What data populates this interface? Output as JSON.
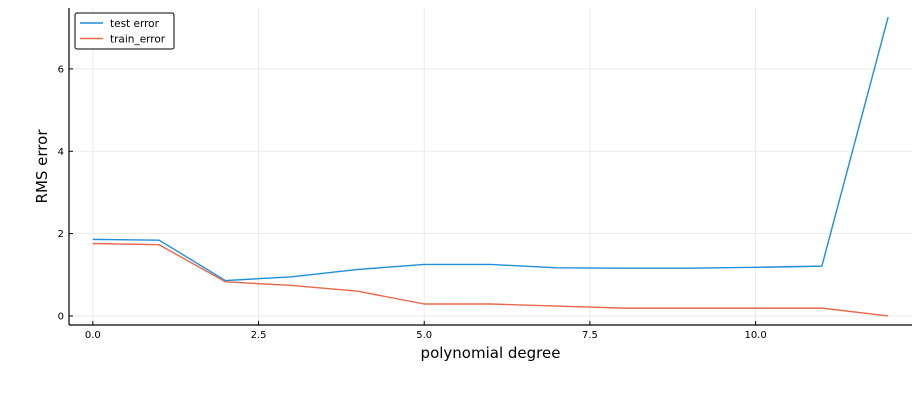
{
  "chart_data": {
    "type": "line",
    "title": "",
    "xlabel": "polynomial degree",
    "ylabel": "RMS error",
    "xlim": [
      -0.36,
      12.36
    ],
    "ylim": [
      -0.22,
      7.48
    ],
    "xticks": [
      0.0,
      2.5,
      5.0,
      7.5,
      10.0
    ],
    "xtick_labels": [
      "0.0",
      "2.5",
      "5.0",
      "7.5",
      "10.0"
    ],
    "yticks": [
      0,
      2,
      4,
      6
    ],
    "ytick_labels": [
      "0",
      "2",
      "4",
      "6"
    ],
    "grid": true,
    "legend_position": "top-left",
    "x": [
      0,
      1,
      2,
      3,
      4,
      5,
      6,
      7,
      8,
      9,
      10,
      11,
      12
    ],
    "series": [
      {
        "name": "test error",
        "color": "#1f8edb",
        "values": [
          1.86,
          1.84,
          0.86,
          0.95,
          1.13,
          1.25,
          1.25,
          1.17,
          1.16,
          1.16,
          1.18,
          1.21,
          7.26
        ]
      },
      {
        "name": "train_error",
        "color": "#e8694a",
        "values": [
          1.76,
          1.73,
          0.83,
          0.74,
          0.6,
          0.29,
          0.29,
          0.24,
          0.19,
          0.19,
          0.19,
          0.19,
          0.0
        ]
      }
    ]
  }
}
